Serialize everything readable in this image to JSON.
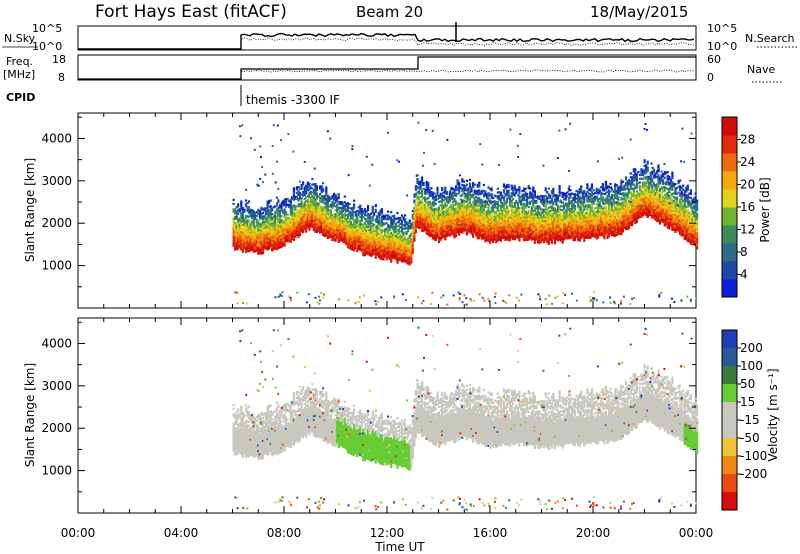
{
  "header": {
    "site": "Fort Hays East (fitACF)",
    "beam": "Beam 20",
    "date": "18/May/2015"
  },
  "top_panels": {
    "nsky": {
      "label": "N.Sky",
      "right_label": "N.Search",
      "ticks_left": [
        "10^5",
        "10^0"
      ],
      "ticks_right": [
        "10^5",
        "10^0"
      ]
    },
    "freq": {
      "label_line1": "Freq.",
      "label_line2": "[MHz]",
      "right_label": "Nave",
      "ticks_left": [
        "18",
        "8"
      ],
      "ticks_right": [
        "60",
        "0"
      ]
    },
    "cpid": {
      "label": "CPID",
      "program": "themis -3300 IF"
    }
  },
  "chart_data": [
    {
      "type": "heatmap",
      "title": "",
      "xlabel": "Time UT",
      "ylabel": "Slant Range [km]",
      "x_ticks": [
        "00:00",
        "04:00",
        "08:00",
        "12:00",
        "16:00",
        "20:00",
        "00:00"
      ],
      "xlim_hours": [
        0,
        24
      ],
      "ylim_km": [
        0,
        4600
      ],
      "y_ticks": [
        1000,
        2000,
        3000,
        4000
      ],
      "colorbar": {
        "label": "Power [dB]",
        "ticks": [
          4,
          8,
          12,
          16,
          20,
          24,
          28
        ],
        "range": [
          0,
          32
        ],
        "colors": [
          "#0a1fd6",
          "#1c4aa6",
          "#2f6b8a",
          "#3d8a5a",
          "#6fb531",
          "#e0d21e",
          "#f5a80c",
          "#ef6a0c",
          "#e32a0d",
          "#d10a0a"
        ]
      },
      "data_windows_hours": [
        [
          6.0,
          13.0
        ],
        [
          13.0,
          24.0
        ]
      ],
      "echo_band": {
        "time_hours": [
          6,
          7,
          8,
          9,
          10,
          11,
          12,
          12.9,
          13.1,
          14,
          15,
          16,
          17,
          18,
          19,
          20,
          21,
          22,
          23,
          24
        ],
        "slant_range_km": [
          1700,
          1600,
          1800,
          2200,
          1900,
          1600,
          1450,
          1350,
          2200,
          1900,
          2100,
          1850,
          1950,
          1850,
          1900,
          1950,
          2050,
          2500,
          2200,
          1750
        ]
      }
    },
    {
      "type": "heatmap",
      "title": "",
      "xlabel": "Time UT",
      "ylabel": "Slant Range [km]",
      "x_ticks": [
        "00:00",
        "04:00",
        "08:00",
        "12:00",
        "16:00",
        "20:00",
        "00:00"
      ],
      "xlim_hours": [
        0,
        24
      ],
      "ylim_km": [
        0,
        4600
      ],
      "y_ticks": [
        1000,
        2000,
        3000,
        4000
      ],
      "colorbar": {
        "label": "Velocity [m s⁻¹]",
        "ticks": [
          "200",
          "100",
          "50",
          "15",
          "-15",
          "-50",
          "-100",
          "-200"
        ],
        "colors": [
          "#1f3fb8",
          "#2a5a9a",
          "#3b7a3b",
          "#66cc33",
          "#c8c8c0",
          "#c8c8c0",
          "#f2c23a",
          "#f08a12",
          "#ea4a10",
          "#d80c0c"
        ]
      }
    }
  ]
}
